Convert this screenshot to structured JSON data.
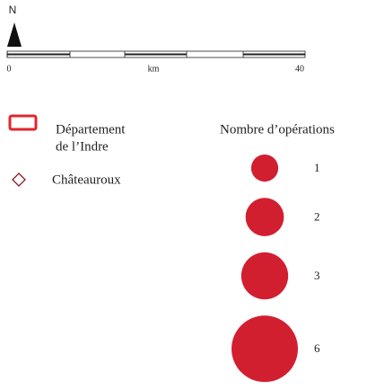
{
  "north": "N",
  "scale": {
    "ticks": [
      0,
      40
    ],
    "unit": "km"
  },
  "legend": {
    "department": [
      "Département",
      "de l’Indre"
    ],
    "city": "Châteauroux"
  },
  "sizes": {
    "title": "Nombre d’opérations",
    "values": [
      1,
      2,
      3,
      6
    ]
  }
}
